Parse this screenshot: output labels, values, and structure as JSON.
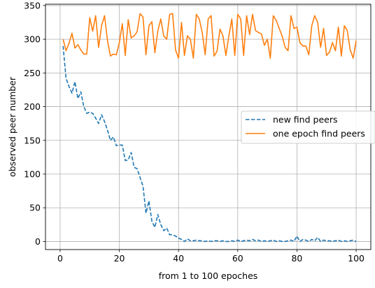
{
  "chart_data": {
    "type": "line",
    "title": "",
    "xlabel": "from 1 to 100 epoches",
    "ylabel": "observed peer number",
    "xlim": [
      -4.95,
      104.95
    ],
    "ylim": [
      -12,
      352
    ],
    "x_ticks": [
      0,
      20,
      40,
      60,
      80,
      100
    ],
    "y_ticks": [
      0,
      50,
      100,
      150,
      200,
      250,
      300,
      350
    ],
    "grid": true,
    "legend_position": "center-right",
    "x": [
      1,
      2,
      3,
      4,
      5,
      6,
      7,
      8,
      9,
      10,
      11,
      12,
      13,
      14,
      15,
      16,
      17,
      18,
      19,
      20,
      21,
      22,
      23,
      24,
      25,
      26,
      27,
      28,
      29,
      30,
      31,
      32,
      33,
      34,
      35,
      36,
      37,
      38,
      39,
      40,
      41,
      42,
      43,
      44,
      45,
      46,
      47,
      48,
      49,
      50,
      51,
      52,
      53,
      54,
      55,
      56,
      57,
      58,
      59,
      60,
      61,
      62,
      63,
      64,
      65,
      66,
      67,
      68,
      69,
      70,
      71,
      72,
      73,
      74,
      75,
      76,
      77,
      78,
      79,
      80,
      81,
      82,
      83,
      84,
      85,
      86,
      87,
      88,
      89,
      90,
      91,
      92,
      93,
      94,
      95,
      96,
      97,
      98,
      99,
      100
    ],
    "series": [
      {
        "name": "new find peers",
        "color": "#1f77b4",
        "style": "dashed",
        "values": [
          290,
          242,
          230,
          220,
          237,
          212,
          222,
          200,
          190,
          192,
          190,
          183,
          175,
          188,
          178,
          165,
          150,
          155,
          142,
          143,
          143,
          120,
          121,
          132,
          110,
          108,
          95,
          82,
          42,
          60,
          30,
          21,
          40,
          25,
          16,
          20,
          10,
          10,
          8,
          5,
          3,
          0,
          4,
          1,
          1,
          2,
          1,
          1,
          0,
          1,
          0,
          1,
          1,
          0,
          1,
          0,
          0,
          1,
          0,
          2,
          0,
          1,
          2,
          1,
          3,
          1,
          2,
          0,
          1,
          0,
          1,
          2,
          0,
          1,
          0,
          0,
          1,
          2,
          0,
          8,
          0,
          3,
          2,
          0,
          3,
          1,
          6,
          0,
          2,
          1,
          1,
          0,
          1,
          2,
          0,
          1,
          0,
          1,
          2,
          0
        ]
      },
      {
        "name": "one epoch find peers",
        "color": "#ff7f0e",
        "style": "solid",
        "values": [
          300,
          283,
          294,
          309,
          287,
          292,
          284,
          278,
          278,
          332,
          312,
          335,
          288,
          320,
          335,
          298,
          275,
          278,
          277,
          295,
          323,
          276,
          329,
          302,
          305,
          311,
          338,
          333,
          277,
          320,
          326,
          280,
          312,
          330,
          305,
          300,
          337,
          338,
          284,
          272,
          325,
          276,
          305,
          300,
          272,
          337,
          330,
          310,
          277,
          330,
          335,
          275,
          282,
          315,
          305,
          276,
          305,
          330,
          276,
          337,
          330,
          276,
          335,
          307,
          337,
          313,
          310,
          308,
          291,
          300,
          272,
          335,
          328,
          316,
          305,
          288,
          283,
          335,
          316,
          318,
          295,
          290,
          290,
          277,
          320,
          335,
          325,
          288,
          316,
          276,
          281,
          295,
          283,
          318,
          275,
          320,
          313,
          284,
          272,
          298
        ]
      }
    ]
  }
}
